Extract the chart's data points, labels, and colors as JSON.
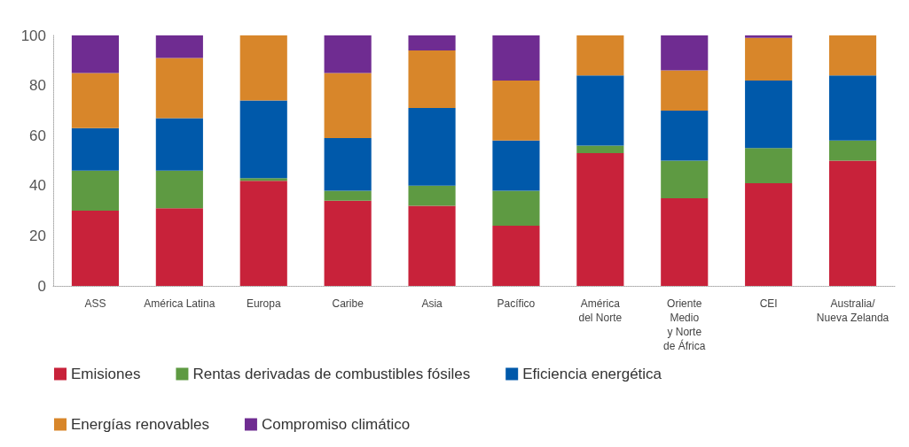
{
  "chart_data": {
    "type": "bar",
    "stacked": true,
    "categories": [
      "ASS",
      "América Latina",
      "Europa",
      "Caribe",
      "Asia",
      "Pacífico",
      "América\ndel Norte",
      "Oriente\nMedio\ny Norte\nde África",
      "CEI",
      "Australia/\nNueva Zelanda"
    ],
    "series": [
      {
        "name": "Emisiones",
        "color": "#c8223a",
        "values": [
          30,
          31,
          42,
          34,
          32,
          24,
          53,
          35,
          41,
          50
        ]
      },
      {
        "name": "Rentas derivadas de combustibles fósiles",
        "color": "#5e9a42",
        "values": [
          16,
          15,
          1,
          4,
          8,
          14,
          3,
          15,
          14,
          8
        ]
      },
      {
        "name": "Eficiencia energética",
        "color": "#0059aa",
        "values": [
          17,
          21,
          31,
          21,
          31,
          20,
          28,
          20,
          27,
          26
        ]
      },
      {
        "name": "Energías renovables",
        "color": "#d8862a",
        "values": [
          22,
          24,
          26,
          26,
          23,
          24,
          16,
          16,
          17,
          16
        ]
      },
      {
        "name": "Compromiso climático",
        "color": "#6f2c91",
        "values": [
          15,
          9,
          0,
          15,
          6,
          18,
          0,
          14,
          1,
          0
        ]
      }
    ],
    "ylim": [
      0,
      100
    ],
    "yticks": [
      0,
      20,
      40,
      60,
      80,
      100
    ],
    "grid": false,
    "legend": "bottom left"
  }
}
